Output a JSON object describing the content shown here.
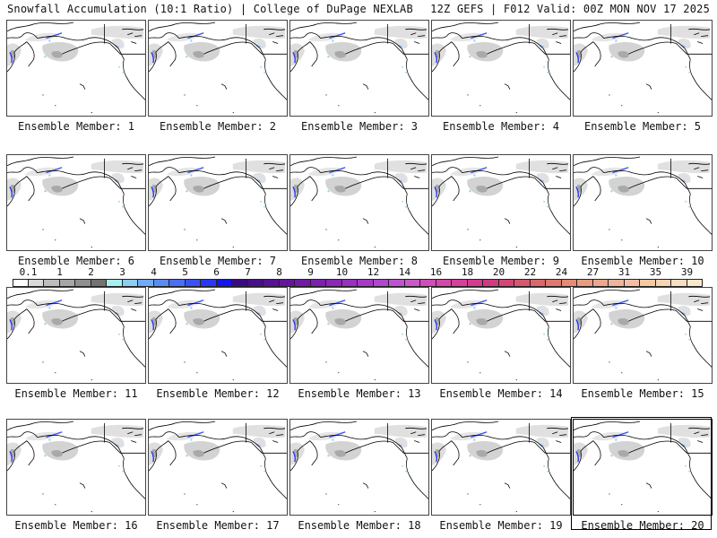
{
  "header": {
    "left_title": "Snowfall Accumulation (10:1 Ratio) | College of DuPage NEXLAB",
    "right_title": "12Z GEFS | F012 Valid: 00Z MON NOV 17 2025"
  },
  "panels": [
    {
      "label": "Ensemble Member: 1"
    },
    {
      "label": "Ensemble Member: 2"
    },
    {
      "label": "Ensemble Member: 3"
    },
    {
      "label": "Ensemble Member: 4"
    },
    {
      "label": "Ensemble Member: 5"
    },
    {
      "label": "Ensemble Member: 6"
    },
    {
      "label": "Ensemble Member: 7"
    },
    {
      "label": "Ensemble Member: 8"
    },
    {
      "label": "Ensemble Member: 9"
    },
    {
      "label": "Ensemble Member: 10"
    },
    {
      "label": "Ensemble Member: 11"
    },
    {
      "label": "Ensemble Member: 12"
    },
    {
      "label": "Ensemble Member: 13"
    },
    {
      "label": "Ensemble Member: 14"
    },
    {
      "label": "Ensemble Member: 15"
    },
    {
      "label": "Ensemble Member: 16"
    },
    {
      "label": "Ensemble Member: 17"
    },
    {
      "label": "Ensemble Member: 18"
    },
    {
      "label": "Ensemble Member: 19"
    },
    {
      "label": "Ensemble Member: 20"
    }
  ],
  "colorbar": {
    "unit_hint": "inches",
    "labels": [
      "0.1",
      "1",
      "2",
      "3",
      "4",
      "5",
      "6",
      "7",
      "8",
      "9",
      "10",
      "12",
      "14",
      "16",
      "18",
      "20",
      "22",
      "24",
      "27",
      "31",
      "35",
      "39"
    ],
    "colors": [
      "#ffffff",
      "#d9d9d9",
      "#bdbdbd",
      "#a6a6a6",
      "#8f8f8f",
      "#737373",
      "#a6f0f0",
      "#8ccdf2",
      "#73aaf5",
      "#5a8cf5",
      "#4a6ef5",
      "#3a52f5",
      "#2a38f5",
      "#1414ee",
      "#3a0a82",
      "#4a0d8c",
      "#581196",
      "#65169f",
      "#7219a8",
      "#7f1fb0",
      "#8c26b8",
      "#9930bf",
      "#a63ac6",
      "#b346cc",
      "#c052d0",
      "#c85ac8",
      "#cf4eb8",
      "#d448aa",
      "#d6409c",
      "#d43a8e",
      "#d23a80",
      "#d44675",
      "#d8566e",
      "#dc666c",
      "#e0786e",
      "#e48a76",
      "#e89a82",
      "#eca88e",
      "#efb49a",
      "#f2bfa6",
      "#f4caa2",
      "#f6d4b2",
      "#f8debf",
      "#fae8cc"
    ]
  }
}
